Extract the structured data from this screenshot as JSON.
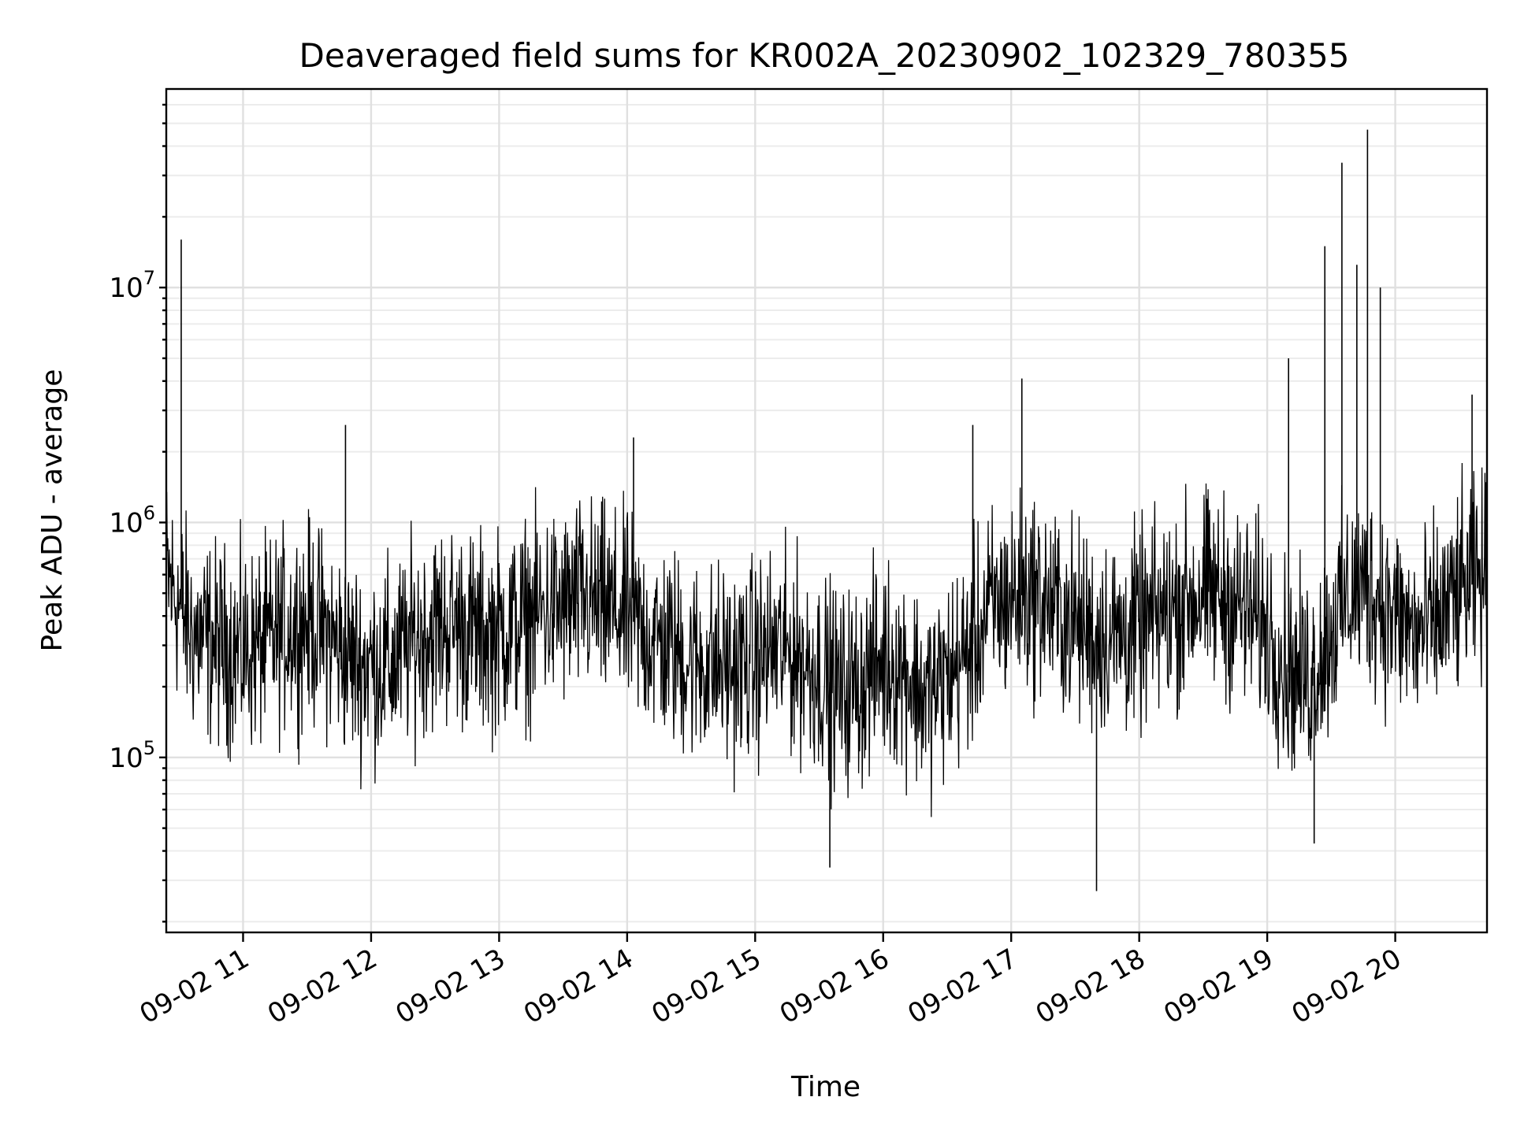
{
  "chart_data": {
    "type": "line",
    "title": "Deaveraged field sums for KR002A_20230902_102329_780355",
    "xlabel": "Time",
    "ylabel": "Peak ADU - average",
    "yscale": "log",
    "ylim": [
      18000,
      70000000
    ],
    "xlim": [
      "2023-09-02 10:24",
      "2023-09-02 20:43"
    ],
    "grid": true,
    "legend": "none",
    "line_color": "#000000",
    "x_ticks": [
      "09-02 11",
      "09-02 12",
      "09-02 13",
      "09-02 14",
      "09-02 15",
      "09-02 16",
      "09-02 17",
      "09-02 18",
      "09-02 19",
      "09-02 20"
    ],
    "x_tick_times": [
      "2023-09-02 11:00",
      "2023-09-02 12:00",
      "2023-09-02 13:00",
      "2023-09-02 14:00",
      "2023-09-02 15:00",
      "2023-09-02 16:00",
      "2023-09-02 17:00",
      "2023-09-02 18:00",
      "2023-09-02 19:00",
      "2023-09-02 20:00"
    ],
    "y_ticks": [
      {
        "value": 100000,
        "base": "10",
        "exp": "5"
      },
      {
        "value": 1000000,
        "base": "10",
        "exp": "6"
      },
      {
        "value": 10000000,
        "base": "10",
        "exp": "7"
      }
    ],
    "series": [
      {
        "x": [
          "2023-09-02 10:24",
          "2023-09-02 10:30",
          "2023-09-02 10:35",
          "2023-09-02 10:40",
          "2023-09-02 10:50",
          "2023-09-02 11:00",
          "2023-09-02 11:10",
          "2023-09-02 11:20",
          "2023-09-02 11:30",
          "2023-09-02 11:40",
          "2023-09-02 11:50",
          "2023-09-02 12:00",
          "2023-09-02 12:10",
          "2023-09-02 12:20",
          "2023-09-02 12:30",
          "2023-09-02 12:40",
          "2023-09-02 12:50",
          "2023-09-02 13:00",
          "2023-09-02 13:10",
          "2023-09-02 13:20",
          "2023-09-02 13:30",
          "2023-09-02 13:40",
          "2023-09-02 13:50",
          "2023-09-02 14:00",
          "2023-09-02 14:10",
          "2023-09-02 14:20",
          "2023-09-02 14:30",
          "2023-09-02 14:40",
          "2023-09-02 14:50",
          "2023-09-02 15:00",
          "2023-09-02 15:10",
          "2023-09-02 15:20",
          "2023-09-02 15:30",
          "2023-09-02 15:40",
          "2023-09-02 15:50",
          "2023-09-02 16:00",
          "2023-09-02 16:10",
          "2023-09-02 16:20",
          "2023-09-02 16:30",
          "2023-09-02 16:40",
          "2023-09-02 16:50",
          "2023-09-02 17:00",
          "2023-09-02 17:10",
          "2023-09-02 17:20",
          "2023-09-02 17:30",
          "2023-09-02 17:40",
          "2023-09-02 17:50",
          "2023-09-02 18:00",
          "2023-09-02 18:10",
          "2023-09-02 18:20",
          "2023-09-02 18:30",
          "2023-09-02 18:40",
          "2023-09-02 18:50",
          "2023-09-02 19:00",
          "2023-09-02 19:10",
          "2023-09-02 19:20",
          "2023-09-02 19:30",
          "2023-09-02 19:40",
          "2023-09-02 19:50",
          "2023-09-02 20:00",
          "2023-09-02 20:10",
          "2023-09-02 20:20",
          "2023-09-02 20:30",
          "2023-09-02 20:43"
        ],
        "y": [
          600000,
          450000,
          350000,
          320000,
          300000,
          280000,
          300000,
          350000,
          380000,
          330000,
          260000,
          250000,
          250000,
          320000,
          360000,
          370000,
          330000,
          340000,
          370000,
          420000,
          430000,
          470000,
          430000,
          400000,
          330000,
          290000,
          260000,
          250000,
          240000,
          260000,
          290000,
          270000,
          230000,
          190000,
          210000,
          260000,
          240000,
          180000,
          220000,
          280000,
          420000,
          480000,
          500000,
          430000,
          370000,
          340000,
          330000,
          350000,
          400000,
          460000,
          500000,
          480000,
          420000,
          360000,
          230000,
          220000,
          350000,
          520000,
          500000,
          400000,
          330000,
          380000,
          500000,
          600000
        ],
        "spikes": [
          {
            "x": "2023-09-02 10:31",
            "y": 16000000
          },
          {
            "x": "2023-09-02 11:48",
            "y": 2600000
          },
          {
            "x": "2023-09-02 14:03",
            "y": 2300000
          },
          {
            "x": "2023-09-02 15:35",
            "y": 34000
          },
          {
            "x": "2023-09-02 16:42",
            "y": 2600000
          },
          {
            "x": "2023-09-02 17:05",
            "y": 4100000
          },
          {
            "x": "2023-09-02 17:40",
            "y": 27000
          },
          {
            "x": "2023-09-02 19:10",
            "y": 5000000
          },
          {
            "x": "2023-09-02 19:22",
            "y": 43000
          },
          {
            "x": "2023-09-02 19:27",
            "y": 15000000
          },
          {
            "x": "2023-09-02 19:35",
            "y": 34000000
          },
          {
            "x": "2023-09-02 19:42",
            "y": 12500000
          },
          {
            "x": "2023-09-02 19:47",
            "y": 47000000
          },
          {
            "x": "2023-09-02 19:53",
            "y": 10000000
          },
          {
            "x": "2023-09-02 20:36",
            "y": 3500000
          }
        ]
      }
    ]
  }
}
